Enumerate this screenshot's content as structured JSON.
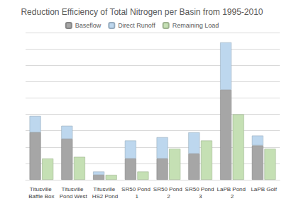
{
  "chart_data": {
    "type": "bar",
    "title": "Reduction Efficiency of Total Nitrogen per Basin from 1995-2010",
    "categories": [
      "Titusville Baffle Box",
      "Titusville Pond West",
      "Titusville HS2 Pond",
      "SR50 Pond 1",
      "SR50 Pond 2",
      "SR50 Pond 3",
      "LaPB Pond 2",
      "LaPB Golf"
    ],
    "series": [
      {
        "name": "Baseflow",
        "color": "#a6a6a6",
        "stacked": true,
        "values": [
          2.9,
          2.5,
          0.3,
          1.3,
          1.3,
          1.6,
          5.5,
          2.1
        ]
      },
      {
        "name": "Direct Runoff",
        "color": "#bdd7ee",
        "stacked": true,
        "values": [
          1.0,
          0.8,
          0.2,
          1.1,
          1.3,
          1.3,
          2.9,
          0.6
        ]
      },
      {
        "name": "Remaining Load",
        "color": "#c5e0b4",
        "stacked": false,
        "values": [
          1.3,
          1.4,
          0.3,
          0.5,
          1.9,
          2.4,
          4.0,
          1.9
        ]
      }
    ],
    "ylim": [
      0,
      9
    ],
    "yticks": [
      0,
      1,
      2,
      3,
      4,
      5,
      6,
      7,
      8,
      9
    ],
    "grid": true,
    "legend": "top",
    "tick_labels": "x"
  }
}
